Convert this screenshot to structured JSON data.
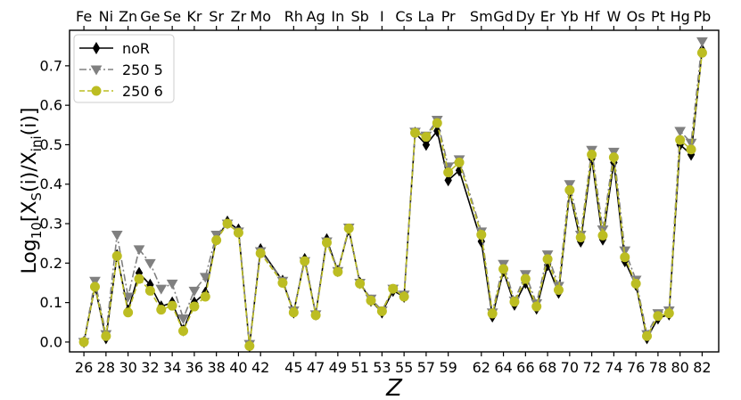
{
  "chart_data": {
    "type": "line",
    "title": "",
    "xlabel": "Z",
    "ylabel_main": "Log",
    "ylabel_sub": "10",
    "ylabel_rest": "[X",
    "ylabel_sub2": "S",
    "ylabel_mid": "(i)/X",
    "ylabel_sub3": "ini",
    "ylabel_end": "(i)]",
    "xlim": [
      24.7,
      83.5
    ],
    "ylim": [
      -0.025,
      0.79
    ],
    "yticks": [
      0.0,
      0.1,
      0.2,
      0.3,
      0.4,
      0.5,
      0.6,
      0.7
    ],
    "ytick_labels": [
      "0.0",
      "0.1",
      "0.2",
      "0.3",
      "0.4",
      "0.5",
      "0.6",
      "0.7"
    ],
    "xticks": [
      26,
      28,
      30,
      32,
      34,
      36,
      38,
      40,
      42,
      45,
      47,
      49,
      51,
      53,
      55,
      57,
      59,
      62,
      64,
      66,
      68,
      70,
      72,
      74,
      76,
      78,
      80,
      82
    ],
    "xtick_labels": [
      "26",
      "28",
      "30",
      "32",
      "34",
      "36",
      "38",
      "40",
      "42",
      "45",
      "47",
      "49",
      "51",
      "53",
      "55",
      "57",
      "59",
      "62",
      "64",
      "66",
      "68",
      "70",
      "72",
      "74",
      "76",
      "78",
      "80",
      "82"
    ],
    "top_ticks": [
      26,
      28,
      30,
      32,
      34,
      36,
      38,
      40,
      42,
      45,
      47,
      49,
      51,
      53,
      55,
      57,
      59,
      62,
      64,
      66,
      68,
      70,
      72,
      74,
      76,
      78,
      80,
      82
    ],
    "top_labels": [
      "Fe",
      "Ni",
      "Zn",
      "Ge",
      "Se",
      "Kr",
      "Sr",
      "Zr",
      "Mo",
      "Rh",
      "Ag",
      "In",
      "Sb",
      "I",
      "Cs",
      "La",
      "Pr",
      "Sm",
      "Gd",
      "Dy",
      "Er",
      "Yb",
      "Hf",
      "W",
      "Os",
      "Pt",
      "Hg",
      "Pb"
    ],
    "legend_position": "upper-left",
    "x": [
      26,
      27,
      28,
      29,
      30,
      31,
      32,
      33,
      34,
      35,
      36,
      37,
      38,
      39,
      40,
      41,
      42,
      44,
      45,
      46,
      47,
      48,
      49,
      50,
      51,
      52,
      53,
      54,
      55,
      56,
      57,
      58,
      59,
      60,
      62,
      63,
      64,
      65,
      66,
      67,
      68,
      69,
      70,
      71,
      72,
      73,
      74,
      75,
      76,
      77,
      78,
      79,
      80,
      81,
      82
    ],
    "series": [
      {
        "name": "noR",
        "color": "#000000",
        "marker": "diamond",
        "dash": "solid",
        "values": [
          0.0,
          0.14,
          0.01,
          0.22,
          0.08,
          0.175,
          0.145,
          0.09,
          0.1,
          0.03,
          0.1,
          0.125,
          0.26,
          0.305,
          0.285,
          -0.01,
          0.235,
          0.155,
          0.075,
          0.21,
          0.07,
          0.26,
          0.18,
          0.285,
          0.15,
          0.105,
          0.075,
          0.13,
          0.115,
          0.53,
          0.5,
          0.535,
          0.41,
          0.435,
          0.255,
          0.065,
          0.18,
          0.095,
          0.15,
          0.085,
          0.195,
          0.125,
          0.38,
          0.255,
          0.465,
          0.26,
          0.455,
          0.205,
          0.145,
          0.01,
          0.06,
          0.07,
          0.5,
          0.475,
          0.74
        ]
      },
      {
        "name": "250 5",
        "color": "#808080",
        "marker": "triangle-down",
        "dash": "dashdot",
        "values": [
          0.0,
          0.155,
          0.02,
          0.272,
          0.115,
          0.235,
          0.2,
          0.135,
          0.148,
          0.06,
          0.13,
          0.165,
          0.272,
          0.3,
          0.28,
          -0.005,
          0.23,
          0.155,
          0.08,
          0.205,
          0.07,
          0.255,
          0.18,
          0.29,
          0.15,
          0.11,
          0.08,
          0.135,
          0.12,
          0.533,
          0.523,
          0.563,
          0.445,
          0.463,
          0.28,
          0.075,
          0.198,
          0.105,
          0.172,
          0.098,
          0.222,
          0.142,
          0.4,
          0.272,
          0.487,
          0.285,
          0.482,
          0.232,
          0.158,
          0.02,
          0.073,
          0.08,
          0.535,
          0.505,
          0.762
        ]
      },
      {
        "name": "250 6",
        "color": "#bcbd22",
        "marker": "circle",
        "dash": "dashed",
        "values": [
          0.0,
          0.14,
          0.015,
          0.218,
          0.075,
          0.16,
          0.13,
          0.082,
          0.092,
          0.028,
          0.09,
          0.115,
          0.258,
          0.3,
          0.277,
          -0.01,
          0.225,
          0.15,
          0.075,
          0.205,
          0.068,
          0.252,
          0.178,
          0.288,
          0.148,
          0.105,
          0.078,
          0.135,
          0.115,
          0.53,
          0.52,
          0.555,
          0.43,
          0.455,
          0.272,
          0.072,
          0.185,
          0.102,
          0.16,
          0.09,
          0.21,
          0.132,
          0.385,
          0.265,
          0.475,
          0.27,
          0.468,
          0.215,
          0.148,
          0.015,
          0.066,
          0.073,
          0.512,
          0.488,
          0.733
        ]
      }
    ]
  }
}
